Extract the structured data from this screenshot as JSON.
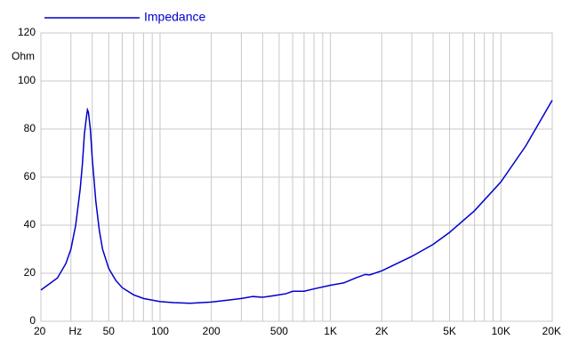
{
  "chart_data": {
    "type": "line",
    "xscale": "log",
    "grid": true,
    "ylabel": "Ohm",
    "xlim": [
      20,
      20000
    ],
    "ylim": [
      0,
      120
    ],
    "yticks": [
      0,
      20,
      40,
      60,
      80,
      100,
      120
    ],
    "xticks": [
      20,
      {
        "value": 30,
        "label": "Hz"
      },
      50,
      100,
      200,
      500,
      {
        "value": 1000,
        "label": "1K"
      },
      {
        "value": 2000,
        "label": "2K"
      },
      {
        "value": 5000,
        "label": "5K"
      },
      {
        "value": 10000,
        "label": "10K"
      },
      {
        "value": 20000,
        "label": "20K"
      }
    ],
    "xminor": [
      40,
      60,
      70,
      80,
      90,
      300,
      400,
      600,
      700,
      800,
      900,
      3000,
      4000,
      6000,
      7000,
      8000,
      9000
    ],
    "x": [
      20,
      25,
      28,
      30,
      32,
      34,
      35,
      36,
      37,
      37.5,
      38,
      39,
      40,
      42,
      44,
      46,
      50,
      55,
      60,
      70,
      80,
      100,
      120,
      150,
      200,
      250,
      300,
      350,
      400,
      450,
      500,
      550,
      600,
      700,
      800,
      1000,
      1200,
      1400,
      1600,
      1700,
      2000,
      3000,
      4000,
      5000,
      7000,
      10000,
      14000,
      20000
    ],
    "series": [
      {
        "name": "Impedance",
        "color": "#0000cc",
        "values": [
          13,
          18,
          24,
          30,
          40,
          55,
          65,
          78,
          85,
          88,
          87,
          80,
          68,
          50,
          38,
          30,
          22,
          17,
          14,
          11,
          9.5,
          8.2,
          7.8,
          7.5,
          8,
          8.8,
          9.5,
          10.3,
          10,
          10.5,
          11,
          11.5,
          12.5,
          12.5,
          13.5,
          15,
          16,
          18,
          19.5,
          19.3,
          21,
          27,
          32,
          37,
          46,
          58,
          73,
          92
        ]
      }
    ]
  }
}
